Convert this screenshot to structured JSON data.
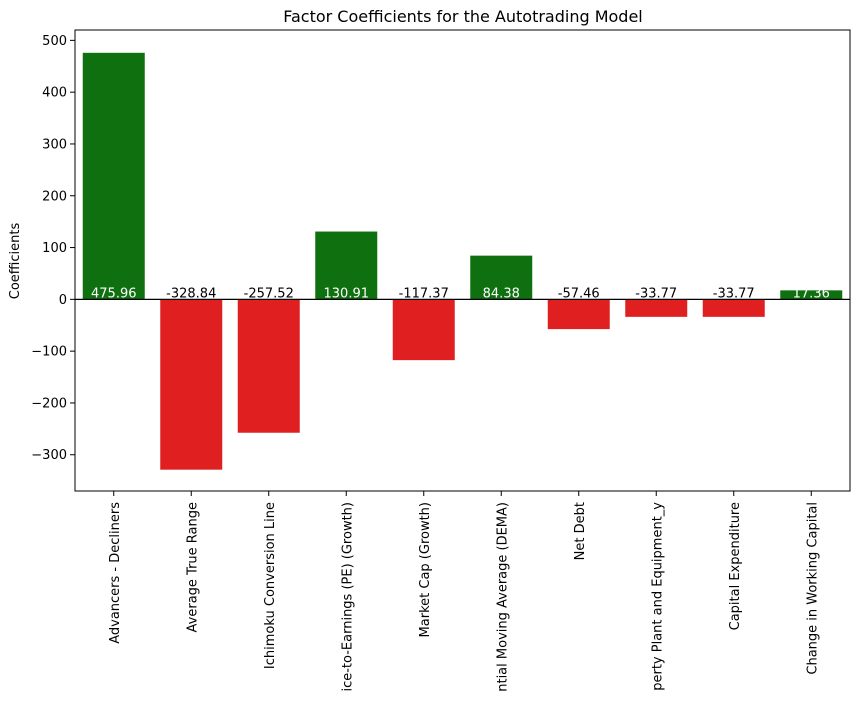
{
  "chart_data": {
    "type": "bar",
    "title": "Factor Coefficients for the Autotrading Model",
    "xlabel": "",
    "ylabel": "Coefficients",
    "ylim": [
      -370,
      520
    ],
    "yticks": [
      -300,
      -200,
      -100,
      0,
      100,
      200,
      300,
      400,
      500
    ],
    "ytick_labels": [
      "−300",
      "−200",
      "−100",
      "0",
      "100",
      "200",
      "300",
      "400",
      "500"
    ],
    "categories": [
      "Advancers - Decliners",
      "Average True Range",
      "Ichimoku Conversion Line",
      "ice-to-Earnings (PE) (Growth)",
      "Market Cap (Growth)",
      "ntial Moving Average (DEMA)",
      "Net Debt",
      "perty Plant and Equipment_y",
      "Capital Expenditure",
      "Change in Working Capital"
    ],
    "values": [
      475.96,
      -328.84,
      -257.52,
      130.91,
      -117.37,
      84.38,
      -57.46,
      -33.77,
      -33.77,
      17.36
    ],
    "value_labels": [
      "475.96",
      "-328.84",
      "-257.52",
      "130.91",
      "-117.37",
      "84.38",
      "-57.46",
      "-33.77",
      "-33.77",
      "17.36"
    ],
    "grid": false,
    "colors": {
      "positive": "#0f700f",
      "negative": "#e02020",
      "zero_line": "#000000",
      "label_on_positive": "#ffffff",
      "label_on_negative": "#000000"
    }
  }
}
